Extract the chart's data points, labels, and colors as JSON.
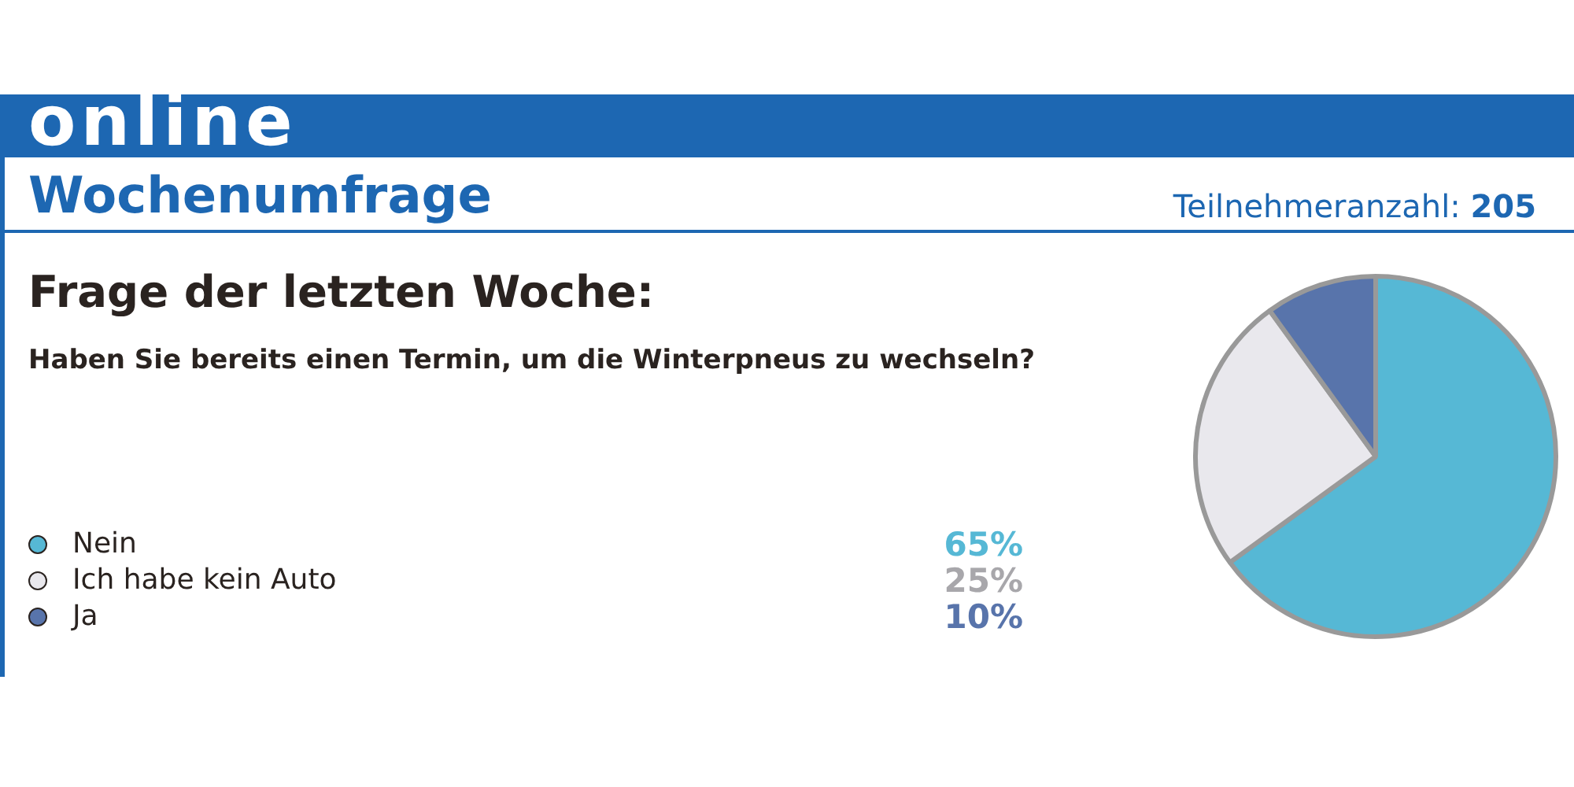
{
  "chart_data": {
    "type": "pie",
    "title": "Frage der letzten Woche:",
    "subtitle": "Haben Sie bereits einen Termin, um die Winterpneus zu wechseln?",
    "annotations": [
      "online",
      "Wochenumfrage",
      "Teilnehmeranzahl: 205"
    ],
    "categories": [
      "Nein",
      "Ich habe kein Auto",
      "Ja"
    ],
    "values": [
      65,
      25,
      10
    ],
    "colors": [
      "#56b8d5",
      "#e9e8ed",
      "#5874ab"
    ],
    "value_labels": [
      "65%",
      "25%",
      "10%"
    ],
    "legend": "left"
  }
}
